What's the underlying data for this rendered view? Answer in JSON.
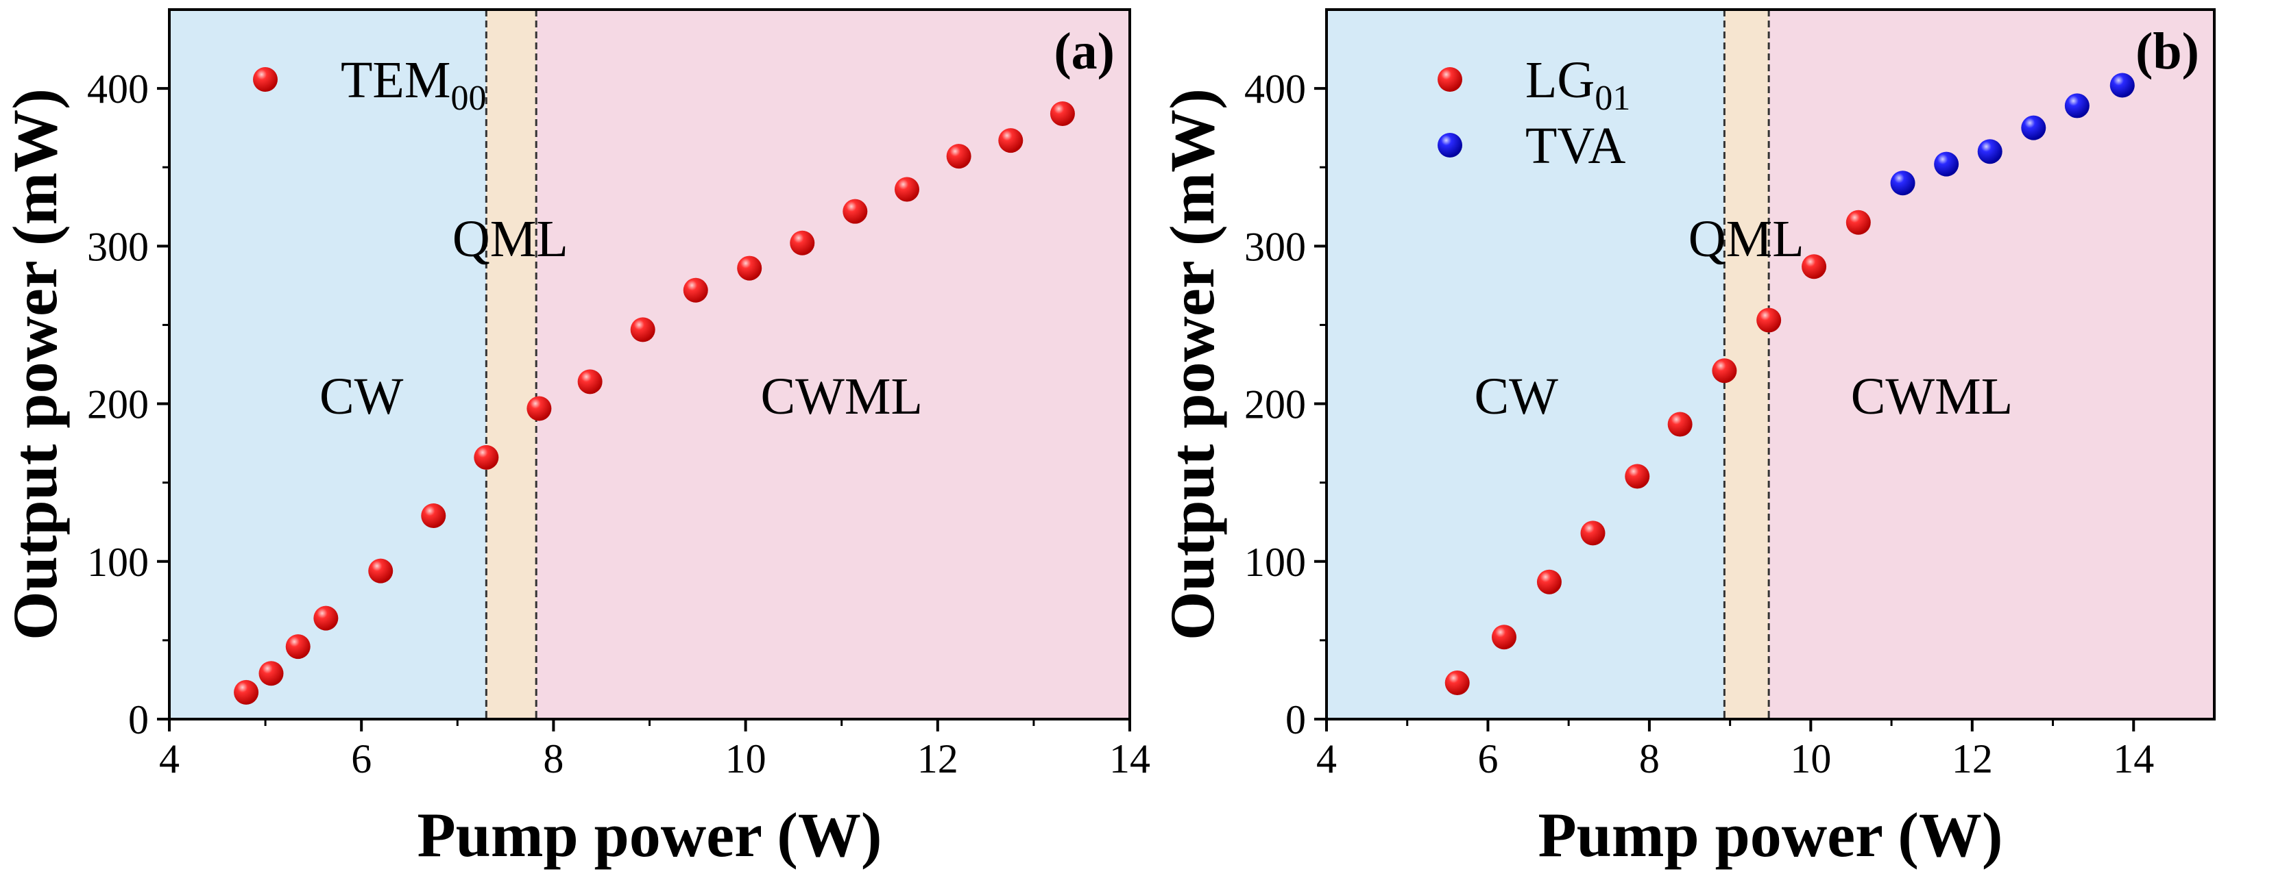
{
  "colors": {
    "cw_region": "#d5eaf7",
    "qml_region": "#f6e5d0",
    "cwml_region": "#f5d9e4",
    "red_marker": "#ee0c0c",
    "blue_marker": "#1515e0",
    "axis": "#000000"
  },
  "chart_data": [
    {
      "type": "scatter",
      "panel_label": "(a)",
      "xlabel": "Pump power (W)",
      "ylabel": "Output power (mW)",
      "xlim": [
        4,
        14
      ],
      "ylim": [
        0,
        450
      ],
      "xticks": [
        4,
        6,
        8,
        10,
        12,
        14
      ],
      "yticks": [
        0,
        100,
        200,
        300,
        400
      ],
      "legend_position": "top-left",
      "regions": [
        {
          "name": "CW",
          "x0": 4,
          "x1": 7.3,
          "color_key": "cw_region"
        },
        {
          "name": "QML",
          "x0": 7.3,
          "x1": 7.82,
          "color_key": "qml_region"
        },
        {
          "name": "CWML",
          "x0": 7.82,
          "x1": 14,
          "color_key": "cwml_region"
        }
      ],
      "boundaries": [
        7.3,
        7.82
      ],
      "annotations": [
        {
          "text": "CW",
          "x": 6.0,
          "y": 205
        },
        {
          "text": "QML",
          "x": 7.55,
          "y": 305
        },
        {
          "text": "CWML",
          "x": 11.0,
          "y": 205
        }
      ],
      "series": [
        {
          "name": "TEM",
          "subscript": "00",
          "color_key": "red_marker",
          "x": [
            4.8,
            5.06,
            5.34,
            5.63,
            6.2,
            6.75,
            7.3,
            7.85,
            8.38,
            8.93,
            9.48,
            10.04,
            10.59,
            11.14,
            11.68,
            12.22,
            12.76,
            13.3
          ],
          "y": [
            17,
            29,
            46,
            64,
            94,
            129,
            166,
            197,
            214,
            247,
            272,
            286,
            302,
            322,
            336,
            357,
            367,
            384
          ]
        }
      ]
    },
    {
      "type": "scatter",
      "panel_label": "(b)",
      "xlabel": "Pump power (W)",
      "ylabel": "Output power (mW)",
      "xlim": [
        4,
        15
      ],
      "ylim": [
        0,
        450
      ],
      "xticks": [
        4,
        6,
        8,
        10,
        12,
        14
      ],
      "yticks": [
        0,
        100,
        200,
        300,
        400
      ],
      "legend_position": "top-left",
      "regions": [
        {
          "name": "CW",
          "x0": 4,
          "x1": 8.93,
          "color_key": "cw_region"
        },
        {
          "name": "QML",
          "x0": 8.93,
          "x1": 9.48,
          "color_key": "qml_region"
        },
        {
          "name": "CWML",
          "x0": 9.48,
          "x1": 15,
          "color_key": "cwml_region"
        }
      ],
      "boundaries": [
        8.93,
        9.48
      ],
      "annotations": [
        {
          "text": "CW",
          "x": 6.35,
          "y": 205
        },
        {
          "text": "QML",
          "x": 9.2,
          "y": 305
        },
        {
          "text": "CWML",
          "x": 11.5,
          "y": 205
        }
      ],
      "series": [
        {
          "name": "LG",
          "subscript": "01",
          "color_key": "red_marker",
          "x": [
            5.62,
            6.2,
            6.76,
            7.3,
            7.85,
            8.38,
            8.93,
            9.48,
            10.04,
            10.59
          ],
          "y": [
            23,
            52,
            87,
            118,
            154,
            187,
            221,
            253,
            287,
            315
          ]
        },
        {
          "name": "TVA",
          "subscript": "",
          "color_key": "blue_marker",
          "x": [
            11.14,
            11.68,
            12.22,
            12.76,
            13.3,
            13.86
          ],
          "y": [
            340,
            352,
            360,
            375,
            389,
            402
          ]
        }
      ]
    }
  ]
}
